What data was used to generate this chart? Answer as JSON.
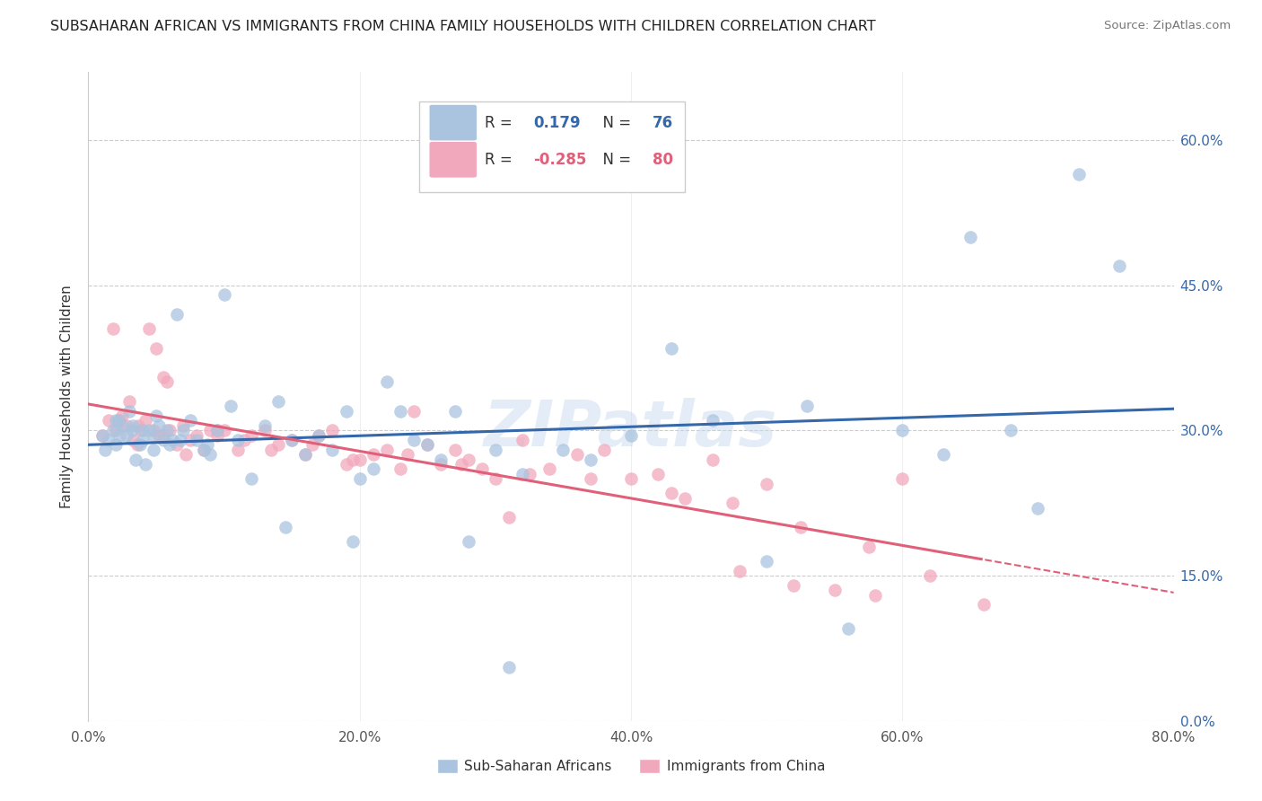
{
  "title": "SUBSAHARAN AFRICAN VS IMMIGRANTS FROM CHINA FAMILY HOUSEHOLDS WITH CHILDREN CORRELATION CHART",
  "source": "Source: ZipAtlas.com",
  "ylabel": "Family Households with Children",
  "xlim": [
    0.0,
    80.0
  ],
  "ylim": [
    0.0,
    67.0
  ],
  "yticks": [
    0.0,
    15.0,
    30.0,
    45.0,
    60.0
  ],
  "xticks": [
    0.0,
    20.0,
    40.0,
    60.0,
    80.0
  ],
  "blue_R": 0.179,
  "blue_N": 76,
  "pink_R": -0.285,
  "pink_N": 80,
  "blue_color": "#aac4df",
  "pink_color": "#f2a8bc",
  "blue_line_color": "#3568aa",
  "pink_line_color": "#e0607a",
  "watermark": "ZIPatlas",
  "blue_scatter_x": [
    1.0,
    1.5,
    1.8,
    2.0,
    2.2,
    2.5,
    2.8,
    3.0,
    3.2,
    3.5,
    3.8,
    4.0,
    4.2,
    4.5,
    4.8,
    5.0,
    5.2,
    5.5,
    5.8,
    6.0,
    6.2,
    6.5,
    7.0,
    7.5,
    8.0,
    8.5,
    9.0,
    9.5,
    10.0,
    11.0,
    12.0,
    13.0,
    14.0,
    15.0,
    16.0,
    17.0,
    18.0,
    19.0,
    20.0,
    21.0,
    22.0,
    23.0,
    24.0,
    25.0,
    26.0,
    27.0,
    28.0,
    30.0,
    32.0,
    35.0,
    37.0,
    40.0,
    43.0,
    46.0,
    50.0,
    53.0,
    56.0,
    60.0,
    63.0,
    65.0,
    68.0,
    70.0,
    73.0,
    76.0,
    1.2,
    2.3,
    3.3,
    4.8,
    6.8,
    8.8,
    10.5,
    14.5,
    19.5,
    31.0,
    2.0,
    4.0
  ],
  "blue_scatter_y": [
    29.5,
    29.0,
    30.0,
    28.5,
    31.0,
    30.5,
    29.5,
    32.0,
    30.0,
    27.0,
    28.5,
    29.0,
    26.5,
    30.0,
    29.5,
    31.5,
    30.5,
    29.0,
    30.0,
    28.5,
    29.0,
    42.0,
    30.0,
    31.0,
    29.0,
    28.0,
    27.5,
    30.0,
    44.0,
    29.0,
    25.0,
    30.5,
    33.0,
    29.0,
    27.5,
    29.5,
    28.0,
    32.0,
    25.0,
    26.0,
    35.0,
    32.0,
    29.0,
    28.5,
    27.0,
    32.0,
    18.5,
    28.0,
    25.5,
    28.0,
    27.0,
    29.5,
    38.5,
    31.0,
    16.5,
    32.5,
    9.5,
    30.0,
    27.5,
    50.0,
    30.0,
    22.0,
    56.5,
    47.0,
    28.0,
    29.5,
    30.5,
    28.0,
    29.0,
    28.5,
    32.5,
    20.0,
    18.5,
    5.5,
    31.0,
    30.0
  ],
  "pink_scatter_x": [
    1.0,
    1.5,
    2.0,
    2.5,
    2.8,
    3.0,
    3.3,
    3.6,
    3.9,
    4.2,
    4.5,
    4.8,
    5.0,
    5.2,
    5.5,
    5.8,
    6.0,
    6.5,
    7.0,
    7.5,
    8.0,
    8.5,
    9.0,
    9.5,
    10.0,
    11.0,
    12.0,
    13.0,
    14.0,
    15.0,
    16.0,
    17.0,
    18.0,
    19.0,
    20.0,
    21.0,
    22.0,
    23.0,
    24.0,
    25.0,
    26.0,
    27.0,
    28.0,
    29.0,
    30.0,
    31.0,
    32.0,
    34.0,
    36.0,
    38.0,
    40.0,
    42.0,
    44.0,
    46.0,
    48.0,
    50.0,
    52.0,
    55.0,
    58.0,
    60.0,
    1.8,
    2.3,
    3.7,
    5.5,
    7.2,
    9.5,
    11.5,
    13.5,
    16.5,
    19.5,
    23.5,
    27.5,
    32.5,
    37.0,
    43.0,
    47.5,
    52.5,
    57.5,
    62.0,
    66.0
  ],
  "pink_scatter_y": [
    29.5,
    31.0,
    30.0,
    31.5,
    30.5,
    33.0,
    29.0,
    28.5,
    30.0,
    31.0,
    40.5,
    30.0,
    38.5,
    29.5,
    35.5,
    35.0,
    30.0,
    28.5,
    30.5,
    29.0,
    29.5,
    28.0,
    30.0,
    29.5,
    30.0,
    28.0,
    29.5,
    30.0,
    28.5,
    29.0,
    27.5,
    29.5,
    30.0,
    26.5,
    27.0,
    27.5,
    28.0,
    26.0,
    32.0,
    28.5,
    26.5,
    28.0,
    27.0,
    26.0,
    25.0,
    21.0,
    29.0,
    26.0,
    27.5,
    28.0,
    25.0,
    25.5,
    23.0,
    27.0,
    15.5,
    24.5,
    14.0,
    13.5,
    13.0,
    25.0,
    40.5,
    31.0,
    30.5,
    29.5,
    27.5,
    30.0,
    29.0,
    28.0,
    28.5,
    27.0,
    27.5,
    26.5,
    25.5,
    25.0,
    23.5,
    22.5,
    20.0,
    18.0,
    15.0,
    12.0
  ]
}
